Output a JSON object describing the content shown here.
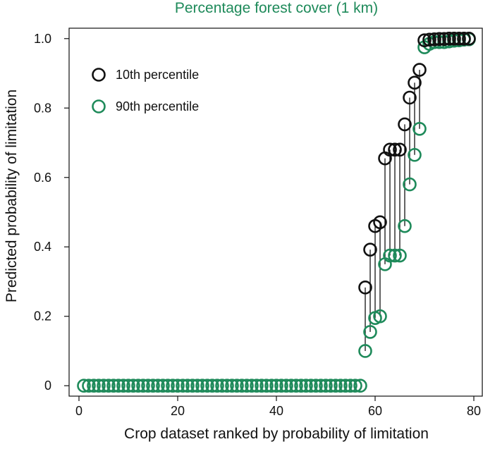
{
  "colors": {
    "p10": "#111111",
    "p90": "#1e8a5a",
    "title": "#1e8a5a",
    "axis": "#111111"
  },
  "chart_data": {
    "type": "scatter",
    "title": "Percentage forest cover (1 km)",
    "xlabel": "Crop dataset ranked by probability of limitation",
    "ylabel": "Predicted probability of limitation",
    "xlim": [
      -2,
      82
    ],
    "ylim": [
      -0.03,
      1.03
    ],
    "x_ticks": [
      0,
      20,
      40,
      60,
      80
    ],
    "y_ticks": [
      0,
      0.2,
      0.4,
      0.6,
      0.8,
      1.0
    ],
    "y_tick_labels": [
      "0",
      "0.2",
      "0.4",
      "0.6",
      "0.8",
      "1.0"
    ],
    "grid": false,
    "legend_position": "top-left",
    "series": [
      {
        "name": "10th percentile",
        "x": [
          1,
          2,
          3,
          4,
          5,
          6,
          7,
          8,
          9,
          10,
          11,
          12,
          13,
          14,
          15,
          16,
          17,
          18,
          19,
          20,
          21,
          22,
          23,
          24,
          25,
          26,
          27,
          28,
          29,
          30,
          31,
          32,
          33,
          34,
          35,
          36,
          37,
          38,
          39,
          40,
          41,
          42,
          43,
          44,
          45,
          46,
          47,
          48,
          49,
          50,
          51,
          52,
          53,
          54,
          55,
          56,
          57,
          58,
          59,
          60,
          61,
          62,
          63,
          64,
          65,
          66,
          67,
          68,
          69,
          70,
          71,
          72,
          73,
          74,
          75,
          76,
          77,
          78,
          79
        ],
        "y": [
          0,
          0,
          0,
          0,
          0,
          0,
          0,
          0,
          0,
          0,
          0,
          0,
          0,
          0,
          0,
          0,
          0,
          0,
          0,
          0,
          0,
          0,
          0,
          0,
          0,
          0,
          0,
          0,
          0,
          0,
          0,
          0,
          0,
          0,
          0,
          0,
          0,
          0,
          0,
          0,
          0,
          0,
          0,
          0,
          0,
          0,
          0,
          0,
          0,
          0,
          0,
          0,
          0,
          0,
          0,
          0,
          0,
          0.283,
          0.392,
          0.46,
          0.471,
          0.655,
          0.68,
          0.68,
          0.68,
          0.753,
          0.83,
          0.873,
          0.91,
          0.995,
          0.997,
          0.998,
          0.999,
          0.999,
          1.0,
          1.0,
          1.0,
          1.0,
          1.0
        ]
      },
      {
        "name": "90th percentile",
        "x": [
          1,
          2,
          3,
          4,
          5,
          6,
          7,
          8,
          9,
          10,
          11,
          12,
          13,
          14,
          15,
          16,
          17,
          18,
          19,
          20,
          21,
          22,
          23,
          24,
          25,
          26,
          27,
          28,
          29,
          30,
          31,
          32,
          33,
          34,
          35,
          36,
          37,
          38,
          39,
          40,
          41,
          42,
          43,
          44,
          45,
          46,
          47,
          48,
          49,
          50,
          51,
          52,
          53,
          54,
          55,
          56,
          57,
          58,
          59,
          60,
          61,
          62,
          63,
          64,
          65,
          66,
          67,
          68,
          69,
          70,
          71,
          72,
          73,
          74,
          75,
          76,
          77,
          78,
          79
        ],
        "y": [
          0,
          0,
          0,
          0,
          0,
          0,
          0,
          0,
          0,
          0,
          0,
          0,
          0,
          0,
          0,
          0,
          0,
          0,
          0,
          0,
          0,
          0,
          0,
          0,
          0,
          0,
          0,
          0,
          0,
          0,
          0,
          0,
          0,
          0,
          0,
          0,
          0,
          0,
          0,
          0,
          0,
          0,
          0,
          0,
          0,
          0,
          0,
          0,
          0,
          0,
          0,
          0,
          0,
          0,
          0,
          0,
          0,
          0.1,
          0.155,
          0.195,
          0.2,
          0.35,
          0.375,
          0.375,
          0.375,
          0.46,
          0.58,
          0.665,
          0.74,
          0.975,
          0.985,
          0.99,
          0.99,
          0.99,
          0.992,
          0.994,
          0.995,
          0.997,
          0.998
        ]
      }
    ]
  }
}
